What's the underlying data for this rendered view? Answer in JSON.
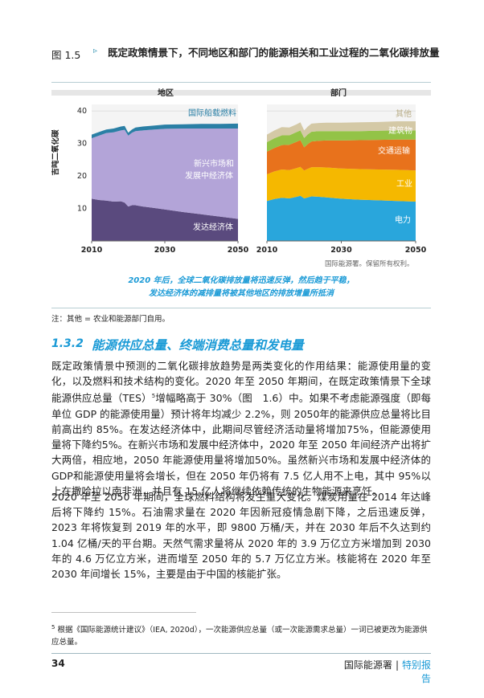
{
  "figure": {
    "label": "图 1.5",
    "arrow": "▹",
    "title": "既定政策情景下，不同地区和部门的能源相关和工业过程的二氧化碳排放量",
    "copyright": "国际能源署。保留所有权利。",
    "caption_line1": "2020 年后，全球二氧化碳排放量将迅速反弹，然后趋于平稳，",
    "caption_line2": "发达经济体的减排量将被其他地区的排放增量所抵消",
    "note": "注：其他 = 农业和能源部门自用。",
    "colors": {
      "intl": "#2a7fa5",
      "emerging": "#b3a4d8",
      "advanced": "#5a4a7e",
      "power": "#29a6dc",
      "industry": "#f5b800",
      "transport": "#e8721c",
      "buildings": "#93c347",
      "other": "#d4c9a6"
    }
  },
  "chart_data": [
    {
      "type": "area",
      "title": "地区",
      "ylabel": "吉吨二氧化碳",
      "ylim": [
        0,
        42
      ],
      "yticks": [
        "10",
        "20",
        "30",
        "40"
      ],
      "xticks": [
        "2010",
        "2030",
        "2050"
      ],
      "x": [
        2010,
        2012,
        2014,
        2016,
        2018,
        2019,
        2020,
        2021,
        2022,
        2024,
        2026,
        2030,
        2035,
        2040,
        2045,
        2050
      ],
      "series": [
        {
          "name": "发达经济体",
          "values": [
            13.0,
            12.6,
            12.4,
            12.1,
            12.2,
            11.8,
            10.6,
            11.0,
            11.0,
            10.6,
            10.3,
            9.7,
            8.9,
            8.2,
            7.5,
            6.8
          ]
        },
        {
          "name": "新兴市场和发展中经济体",
          "values": [
            18.6,
            19.8,
            20.8,
            21.3,
            21.8,
            22.4,
            21.8,
            22.3,
            22.8,
            23.4,
            23.9,
            24.8,
            25.7,
            26.4,
            27.1,
            27.8
          ]
        },
        {
          "name": "国际船载燃料",
          "values": [
            1.1,
            1.1,
            1.1,
            1.2,
            1.2,
            1.2,
            0.9,
            1.0,
            1.1,
            1.2,
            1.2,
            1.3,
            1.3,
            1.4,
            1.4,
            1.5
          ]
        }
      ],
      "labels": {
        "advanced": "发达经济体",
        "emerging_line1": "新兴市场和",
        "emerging_line2": "发展中经济体",
        "intl": "国际船载燃料"
      }
    },
    {
      "type": "area",
      "title": "部门",
      "ylim": [
        0,
        42
      ],
      "xticks": [
        "2010",
        "2030",
        "2050"
      ],
      "x": [
        2010,
        2012,
        2014,
        2016,
        2018,
        2019,
        2020,
        2021,
        2022,
        2024,
        2026,
        2030,
        2035,
        2040,
        2045,
        2050
      ],
      "series": [
        {
          "name": "电力",
          "values": [
            12.3,
            12.9,
            13.3,
            13.1,
            13.6,
            13.9,
            13.1,
            13.4,
            13.7,
            13.6,
            13.4,
            13.0,
            12.7,
            12.5,
            12.3,
            12.1
          ]
        },
        {
          "name": "工业",
          "values": [
            8.2,
            8.5,
            8.7,
            8.7,
            8.8,
            8.9,
            8.6,
            8.8,
            9.0,
            9.1,
            9.2,
            9.3,
            9.4,
            9.5,
            9.6,
            9.6
          ]
        },
        {
          "name": "交通运输",
          "values": [
            7.0,
            7.2,
            7.5,
            7.8,
            8.1,
            8.2,
            7.1,
            7.6,
            7.9,
            8.1,
            8.3,
            8.6,
            8.9,
            9.1,
            9.3,
            9.5
          ]
        },
        {
          "name": "建筑物",
          "values": [
            2.9,
            3.0,
            3.0,
            2.9,
            3.0,
            3.0,
            2.9,
            3.0,
            3.0,
            3.0,
            2.9,
            2.9,
            2.8,
            2.8,
            2.8,
            2.8
          ]
        },
        {
          "name": "其他",
          "values": [
            2.3,
            2.4,
            2.5,
            2.4,
            2.4,
            2.5,
            2.3,
            2.4,
            2.5,
            2.5,
            2.6,
            2.6,
            2.7,
            2.7,
            2.8,
            2.8
          ]
        }
      ],
      "labels": {
        "power": "电力",
        "industry": "工业",
        "transport": "交通运输",
        "buildings": "建筑物",
        "other": "其他"
      }
    }
  ],
  "section": {
    "number": "1.3.2",
    "title": "能源供应总量、终端消费总量和发电量"
  },
  "body": {
    "para1_a": "既定政策情景中预测的二氧化碳排放趋势是两类变化的作用结果：能源使用量的变化，以及燃料和技术结构的变化。2020 年至 2050 年期间，在既定政策情景下全球能源供应总量（TES）",
    "fn_ref": "5",
    "para1_b": "增幅略高于 30%（图　1.6）中。如果不考虑能源强度（即每单位 GDP 的能源使用量）预计将年均减少 2.2%，则 2050年的能源供应总量将比目前高出约 85%。在发达经济体中，此期间尽管经济活动量将增加75%，但能源使用量将下降约5%。在新兴市场和发展中经济体中，2020 年至 2050 年间经济产出将扩大两倍，相应地，2050 年能源使用量将增加50%。虽然新兴市场和发展中经济体的GDP和能源使用量将会增长，但在 2050 年仍将有 7.5 亿人用不上电，其中 95%以上在撒哈拉以南非洲，并且有 15 亿人将继续依赖传统的生物能源来烹饪。",
    "para2": "2020 年至 2050 年期间，全球燃料结构将发生重大变化。煤炭用量在 2014 年达峰后将下降约 15%。石油需求量在 2020 年因新冠疫情急剧下降，之后迅速反弹，2023 年将恢复到 2019 年的水平，即 9800 万桶/天，并在 2030 年后不久达到约 1.04 亿桶/天的平台期。天然气需求量将从 2020 年的 3.9 万亿立方米增加到 2030 年的 4.6 万亿立方米，进而增至 2050 年的 5.7 万亿立方米。核能将在 2020 年至 2030 年间增长 15%，主要是由于中国的核能扩张。"
  },
  "footnote": {
    "number": "5",
    "text": "根据《国际能源统计建议》（IEA, 2020d），一次能源供应总量（或一次能源需求总量）一词已被更改为能源供应总量。"
  },
  "footer": {
    "page": "34",
    "org": "国际能源署",
    "sep": "|",
    "series": "特别报告"
  }
}
